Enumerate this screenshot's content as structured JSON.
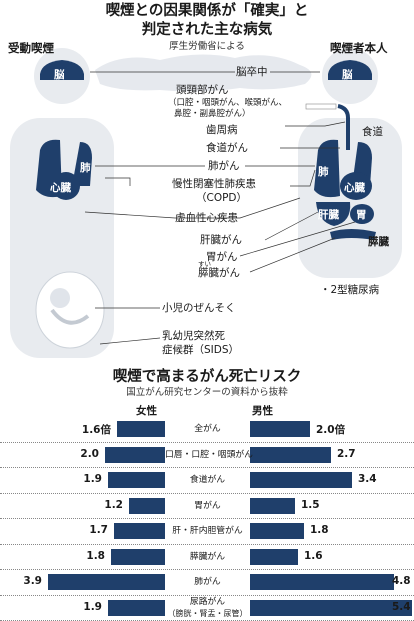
{
  "title": {
    "line1": "喫煙との因果関係が「確実」と",
    "line2": "判定された主な病気"
  },
  "source": "厚生労働省による",
  "left_label": "受動喫煙",
  "right_label": "喫煙者本人",
  "organs": {
    "brain": "脳",
    "lung": "肺",
    "heart": "心臓",
    "liver": "肝臓",
    "stomach": "胃",
    "pancreas": "膵臓",
    "esophagus": "食道"
  },
  "diseases": [
    "脳卒中",
    "頭頸部がん",
    "（口腔・咽頭がん、喉頭がん、",
    "鼻腔・副鼻腔がん）",
    "歯周病",
    "食道がん",
    "肺がん",
    "慢性閉塞性肺疾患",
    "（COPD）",
    "虚血性心疾患",
    "肝臓がん",
    "胃がん",
    "膵臓がん",
    "小児のぜんそく",
    "乳幼児突然死",
    "症候群（SIDS）"
  ],
  "diabetes": "・2型糖尿病",
  "furigana": "すい",
  "chart_title": "喫煙で高まるがん死亡リスク",
  "chart_source": "国立がん研究センターの資料から抜粋",
  "chart_data": {
    "type": "bar",
    "title": "喫煙で高まるがん死亡リスク",
    "categories": [
      "全がん",
      "口唇・口腔・咽頭がん",
      "食道がん",
      "胃がん",
      "肝・肝内胆管がん",
      "膵臓がん",
      "肺がん",
      "尿路がん"
    ],
    "category_sub": {
      "尿路がん": "（膀胱・腎盂・尿管）"
    },
    "series": [
      {
        "name": "女性",
        "values": [
          1.6,
          2.0,
          1.9,
          1.2,
          1.7,
          1.8,
          3.9,
          1.9
        ],
        "labels": [
          "1.6倍",
          "2.0",
          "1.9",
          "1.2",
          "1.7",
          "1.8",
          "3.9",
          "1.9"
        ]
      },
      {
        "name": "男性",
        "values": [
          2.0,
          2.7,
          3.4,
          1.5,
          1.8,
          1.6,
          4.8,
          5.4
        ],
        "labels": [
          "2.0倍",
          "2.7",
          "3.4",
          "1.5",
          "1.8",
          "1.6",
          "4.8",
          "5.4"
        ]
      }
    ],
    "color": "#1f3f6b"
  }
}
